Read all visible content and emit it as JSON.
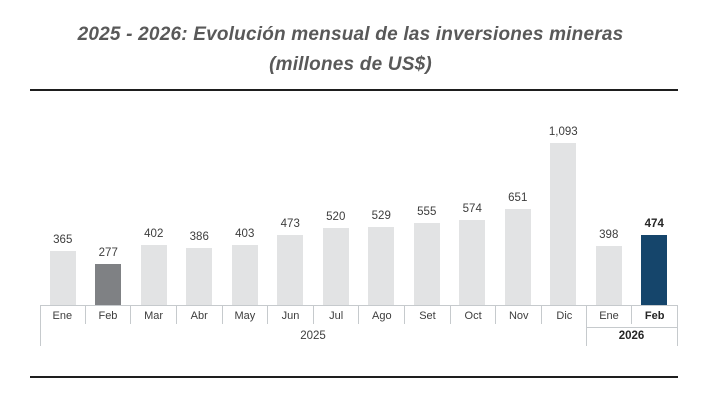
{
  "title": {
    "line1": "2025 - 2026: Evolución mensual de las inversiones mineras",
    "line2": "(millones de US$)"
  },
  "chart_data": {
    "type": "bar",
    "title": "2025 - 2026: Evolución mensual de las inversiones mineras (millones de US$)",
    "ylabel": "millones de US$",
    "grid": false,
    "legend": "none",
    "categories": [
      "Ene",
      "Feb",
      "Mar",
      "Abr",
      "May",
      "Jun",
      "Jul",
      "Ago",
      "Set",
      "Oct",
      "Nov",
      "Dic",
      "Ene",
      "Feb"
    ],
    "values": [
      365,
      277,
      402,
      386,
      403,
      473,
      520,
      529,
      555,
      574,
      651,
      1093,
      398,
      474
    ],
    "value_labels": [
      "365",
      "277",
      "402",
      "386",
      "403",
      "473",
      "520",
      "529",
      "555",
      "574",
      "651",
      "1,093",
      "398",
      "474"
    ],
    "bar_styles": [
      "default",
      "gray",
      "default",
      "default",
      "default",
      "default",
      "default",
      "default",
      "default",
      "default",
      "default",
      "default",
      "default",
      "navy"
    ],
    "bold_value_indices": [
      13
    ],
    "bold_category_indices": [
      13
    ],
    "year_groups": [
      {
        "label": "2025",
        "start": 0,
        "count": 12,
        "bold": false
      },
      {
        "label": "2026",
        "start": 12,
        "count": 2,
        "bold": true
      }
    ],
    "ylim": [
      0,
      1093
    ],
    "colors": {
      "default": "#e2e3e4",
      "gray": "#7f8184",
      "navy": "#15456b"
    }
  },
  "style": {
    "title_color": "#595959",
    "label_color": "#3d3d3d",
    "axis_line_color": "#c6cacd",
    "rule_color": "#1e1e1e"
  }
}
